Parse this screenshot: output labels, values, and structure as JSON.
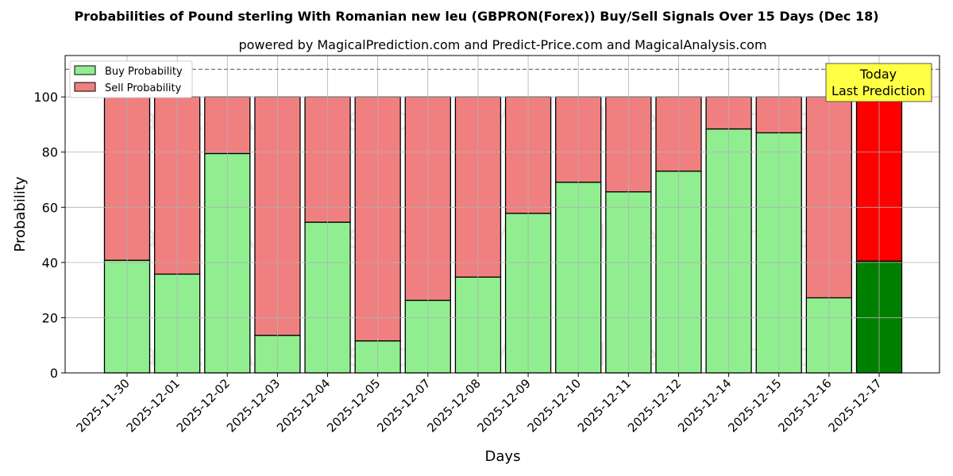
{
  "chart_data": {
    "type": "bar",
    "title": "Probabilities of Pound sterling With Romanian new leu (GBPRON(Forex)) Buy/Sell Signals Over 15 Days (Dec 18)",
    "subtitle": "powered by MagicalPrediction.com and Predict-Price.com and MagicalAnalysis.com",
    "xlabel": "Days",
    "ylabel": "Probability",
    "ylim": [
      0,
      115
    ],
    "yticks": [
      0,
      20,
      40,
      60,
      80,
      100
    ],
    "reference_line": 110,
    "grid": true,
    "legend_placement": "top-left",
    "categories": [
      "2025-11-30",
      "2025-12-01",
      "2025-12-02",
      "2025-12-03",
      "2025-12-04",
      "2025-12-05",
      "2025-12-07",
      "2025-12-08",
      "2025-12-09",
      "2025-12-10",
      "2025-12-11",
      "2025-12-12",
      "2025-12-14",
      "2025-12-15",
      "2025-12-16",
      "2025-12-17"
    ],
    "series": [
      {
        "name": "Buy Probability",
        "color": "#90ee90",
        "values": [
          40.8,
          35.8,
          79.5,
          13.6,
          54.6,
          11.6,
          26.3,
          34.7,
          57.8,
          69.1,
          65.6,
          73.1,
          88.4,
          87.0,
          27.2,
          40.5
        ]
      },
      {
        "name": "Sell Probability",
        "color": "#f08080",
        "values": [
          59.2,
          64.2,
          20.5,
          86.4,
          45.4,
          88.4,
          73.7,
          65.3,
          42.2,
          30.9,
          34.4,
          26.9,
          11.6,
          13.0,
          72.8,
          59.5
        ]
      }
    ],
    "highlight": {
      "index": 15,
      "buy_color": "#008000",
      "sell_color": "#ff0000"
    },
    "annotation": "Today\nLast Prediction",
    "watermarks": [
      "MagicalAnalysis.com",
      "MagicalPrediction.com"
    ]
  }
}
